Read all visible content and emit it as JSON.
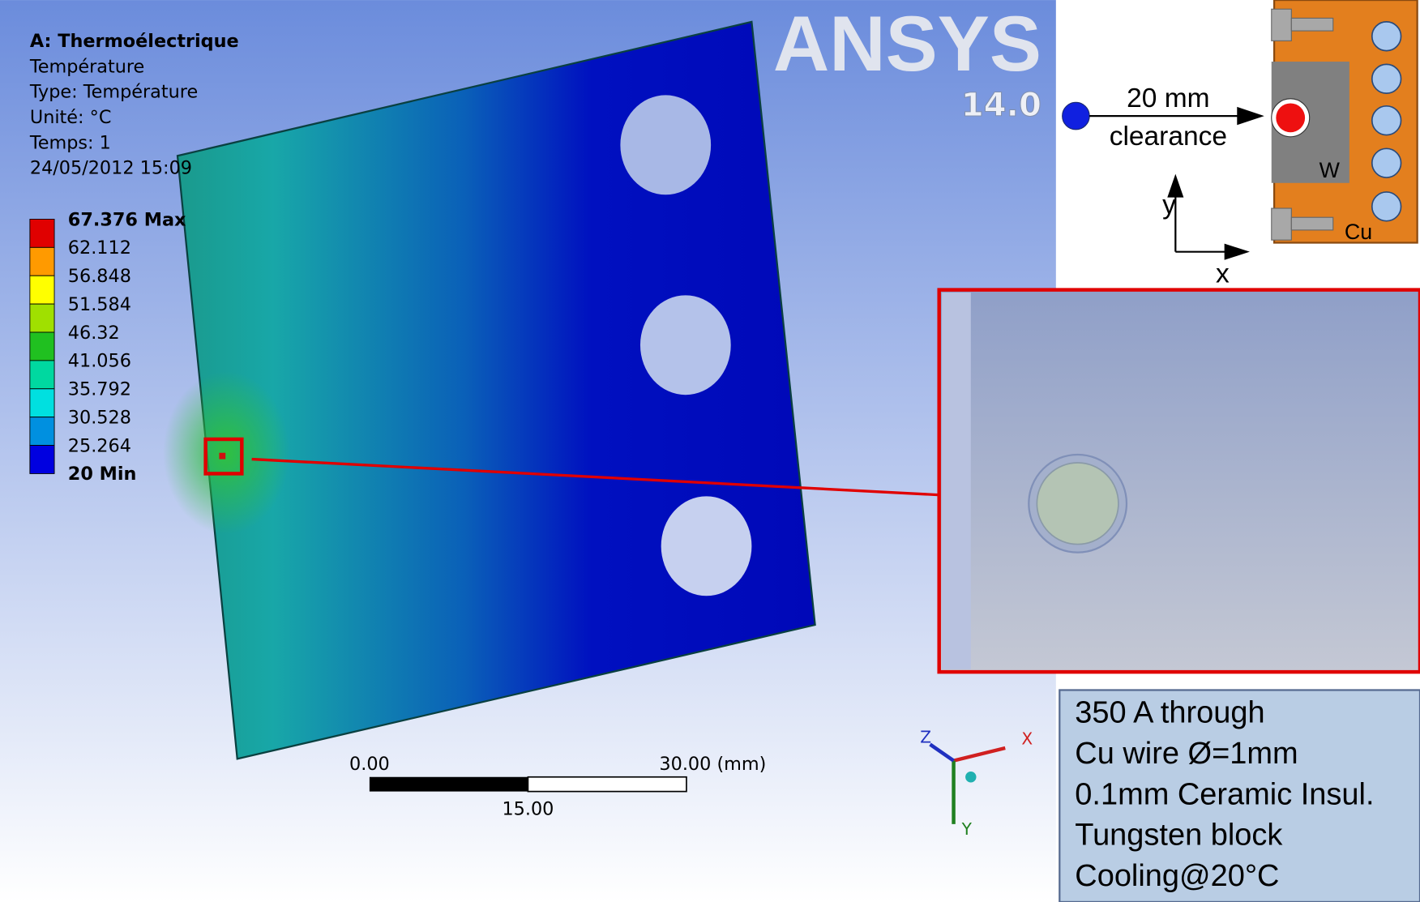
{
  "header": {
    "title": "A: Thermoélectrique",
    "lines": [
      "Température",
      "Type: Température",
      "Unité: °C",
      "Temps: 1",
      "24/05/2012 15:09"
    ]
  },
  "legend": {
    "entries": [
      "67.376 Max",
      "62.112",
      "56.848",
      "51.584",
      "46.32",
      "41.056",
      "35.792",
      "30.528",
      "25.264",
      "20 Min"
    ]
  },
  "logo": {
    "brand": "ANSYS",
    "version": "14.0"
  },
  "scale_bar": {
    "start": "0.00",
    "end": "30.00 (mm)",
    "middle": "15.00"
  },
  "triad": {
    "x": "X",
    "y": "Y",
    "z": "Z"
  },
  "diagram": {
    "distance": "20 mm",
    "distance_label": "clearance",
    "block": "W",
    "plate": "Cu",
    "axis_x": "x",
    "axis_y": "y"
  },
  "notes": [
    "350 A through",
    "Cu wire Ø=1mm",
    "0.1mm Ceramic Insul.",
    "Tungsten block",
    "Cooling@20°C"
  ]
}
